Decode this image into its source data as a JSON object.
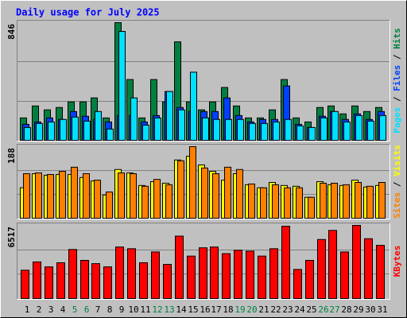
{
  "chart_data": {
    "type": "bar",
    "title": "Daily usage for July 2025",
    "categories": [
      "1",
      "2",
      "3",
      "4",
      "5",
      "6",
      "7",
      "8",
      "9",
      "10",
      "11",
      "12",
      "13",
      "14",
      "15",
      "16",
      "17",
      "18",
      "19",
      "20",
      "21",
      "22",
      "23",
      "24",
      "25",
      "26",
      "27",
      "28",
      "29",
      "30",
      "31"
    ],
    "category_label_colors": [
      "#000000",
      "#000000",
      "#000000",
      "#000000",
      "#008040",
      "#008040",
      "#000000",
      "#000000",
      "#000000",
      "#000000",
      "#000000",
      "#008040",
      "#008040",
      "#000000",
      "#000000",
      "#000000",
      "#000000",
      "#000000",
      "#008040",
      "#008040",
      "#000000",
      "#000000",
      "#000000",
      "#000000",
      "#000000",
      "#008040",
      "#008040",
      "#000000",
      "#000000",
      "#000000",
      "#000000"
    ],
    "legend_separator": " / ",
    "grid_divisions": 3,
    "panels": [
      {
        "ylim": [
          0,
          846
        ],
        "yticks": [
          846
        ],
        "series": [
          {
            "name": "Hits",
            "color": "#008040",
            "values": [
              161,
              247,
              219,
              236,
              276,
              276,
              305,
              161,
              846,
              437,
              161,
              437,
              276,
              708,
              276,
              219,
              276,
              380,
              247,
              161,
              161,
              219,
              437,
              161,
              132,
              236,
              247,
              190,
              247,
              207,
              236
            ]
          },
          {
            "name": "Files",
            "color": "#0040ff",
            "values": [
              115,
              132,
              161,
              150,
              207,
              173,
              150,
              132,
              178,
              178,
              132,
              178,
              351,
              236,
              207,
              207,
              207,
              305,
              178,
              132,
              150,
              150,
              391,
              115,
              92,
              173,
              207,
              150,
              190,
              150,
              207
            ]
          },
          {
            "name": "Pages",
            "color": "#00e0ff",
            "values": [
              92,
              121,
              132,
              150,
              167,
              138,
              207,
              81,
              783,
              305,
              109,
              161,
              351,
              219,
              490,
              161,
              150,
              150,
              150,
              121,
              121,
              132,
              150,
              104,
              92,
              161,
              207,
              132,
              178,
              138,
              178
            ]
          }
        ]
      },
      {
        "ylim": [
          0,
          188
        ],
        "yticks": [
          188
        ],
        "series": [
          {
            "name": "Visits",
            "color": "#ffff00",
            "values": [
              80,
              117,
              113,
              115,
              115,
              107,
              98,
              61,
              128,
              119,
              86,
              96,
              92,
              153,
              163,
              140,
              123,
              100,
              117,
              88,
              80,
              94,
              86,
              84,
              55,
              96,
              88,
              86,
              100,
              82,
              86
            ]
          },
          {
            "name": "Sites",
            "color": "#ff8000",
            "values": [
              117,
              119,
              115,
              123,
              134,
              117,
              100,
              69,
              119,
              117,
              84,
              102,
              88,
              151,
              188,
              132,
              117,
              134,
              128,
              90,
              80,
              88,
              80,
              80,
              55,
              92,
              92,
              88,
              94,
              84,
              94
            ]
          }
        ]
      },
      {
        "ylim": [
          0,
          6517
        ],
        "yticks": [
          6517
        ],
        "series": [
          {
            "name": "KBytes",
            "color": "#ff0000",
            "values": [
              2520,
              3260,
              2820,
              3190,
              4370,
              3400,
              3110,
              2820,
              4590,
              4440,
              3190,
              4150,
              3040,
              5560,
              3780,
              4520,
              4590,
              4000,
              4300,
              4220,
              3780,
              4440,
              6440,
              2590,
              3400,
              5260,
              6070,
              4150,
              6517,
              5330,
              4740
            ]
          }
        ]
      }
    ]
  }
}
